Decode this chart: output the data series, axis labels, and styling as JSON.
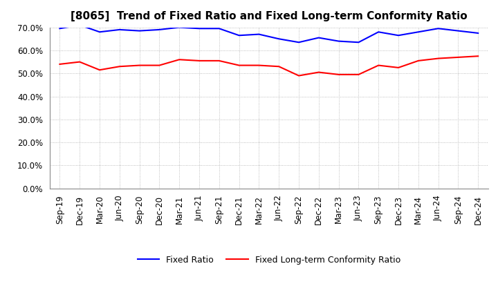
{
  "title": "[8065]  Trend of Fixed Ratio and Fixed Long-term Conformity Ratio",
  "x_labels": [
    "Sep-19",
    "Dec-19",
    "Mar-20",
    "Jun-20",
    "Sep-20",
    "Dec-20",
    "Mar-21",
    "Jun-21",
    "Sep-21",
    "Dec-21",
    "Mar-22",
    "Jun-22",
    "Sep-22",
    "Dec-22",
    "Mar-23",
    "Jun-23",
    "Sep-23",
    "Dec-23",
    "Mar-24",
    "Jun-24",
    "Sep-24",
    "Dec-24"
  ],
  "fixed_ratio": [
    69.5,
    71.0,
    68.0,
    69.0,
    68.5,
    69.0,
    70.0,
    69.5,
    69.5,
    66.5,
    67.0,
    65.0,
    63.5,
    65.5,
    64.0,
    63.5,
    68.0,
    66.5,
    68.0,
    69.5,
    68.5,
    67.5
  ],
  "fixed_lt_ratio": [
    54.0,
    55.0,
    51.5,
    53.0,
    53.5,
    53.5,
    56.0,
    55.5,
    55.5,
    53.5,
    53.5,
    53.0,
    49.0,
    50.5,
    49.5,
    49.5,
    53.5,
    52.5,
    55.5,
    56.5,
    57.0,
    57.5
  ],
  "fixed_ratio_color": "#0000FF",
  "fixed_lt_ratio_color": "#FF0000",
  "ylim": [
    0,
    70
  ],
  "yticks": [
    0,
    10,
    20,
    30,
    40,
    50,
    60,
    70
  ],
  "background_color": "#FFFFFF",
  "plot_bg_color": "#FFFFFF",
  "grid_color": "#AAAAAA",
  "title_fontsize": 11,
  "tick_fontsize": 8.5,
  "legend_label_fixed": "Fixed Ratio",
  "legend_label_lt": "Fixed Long-term Conformity Ratio"
}
